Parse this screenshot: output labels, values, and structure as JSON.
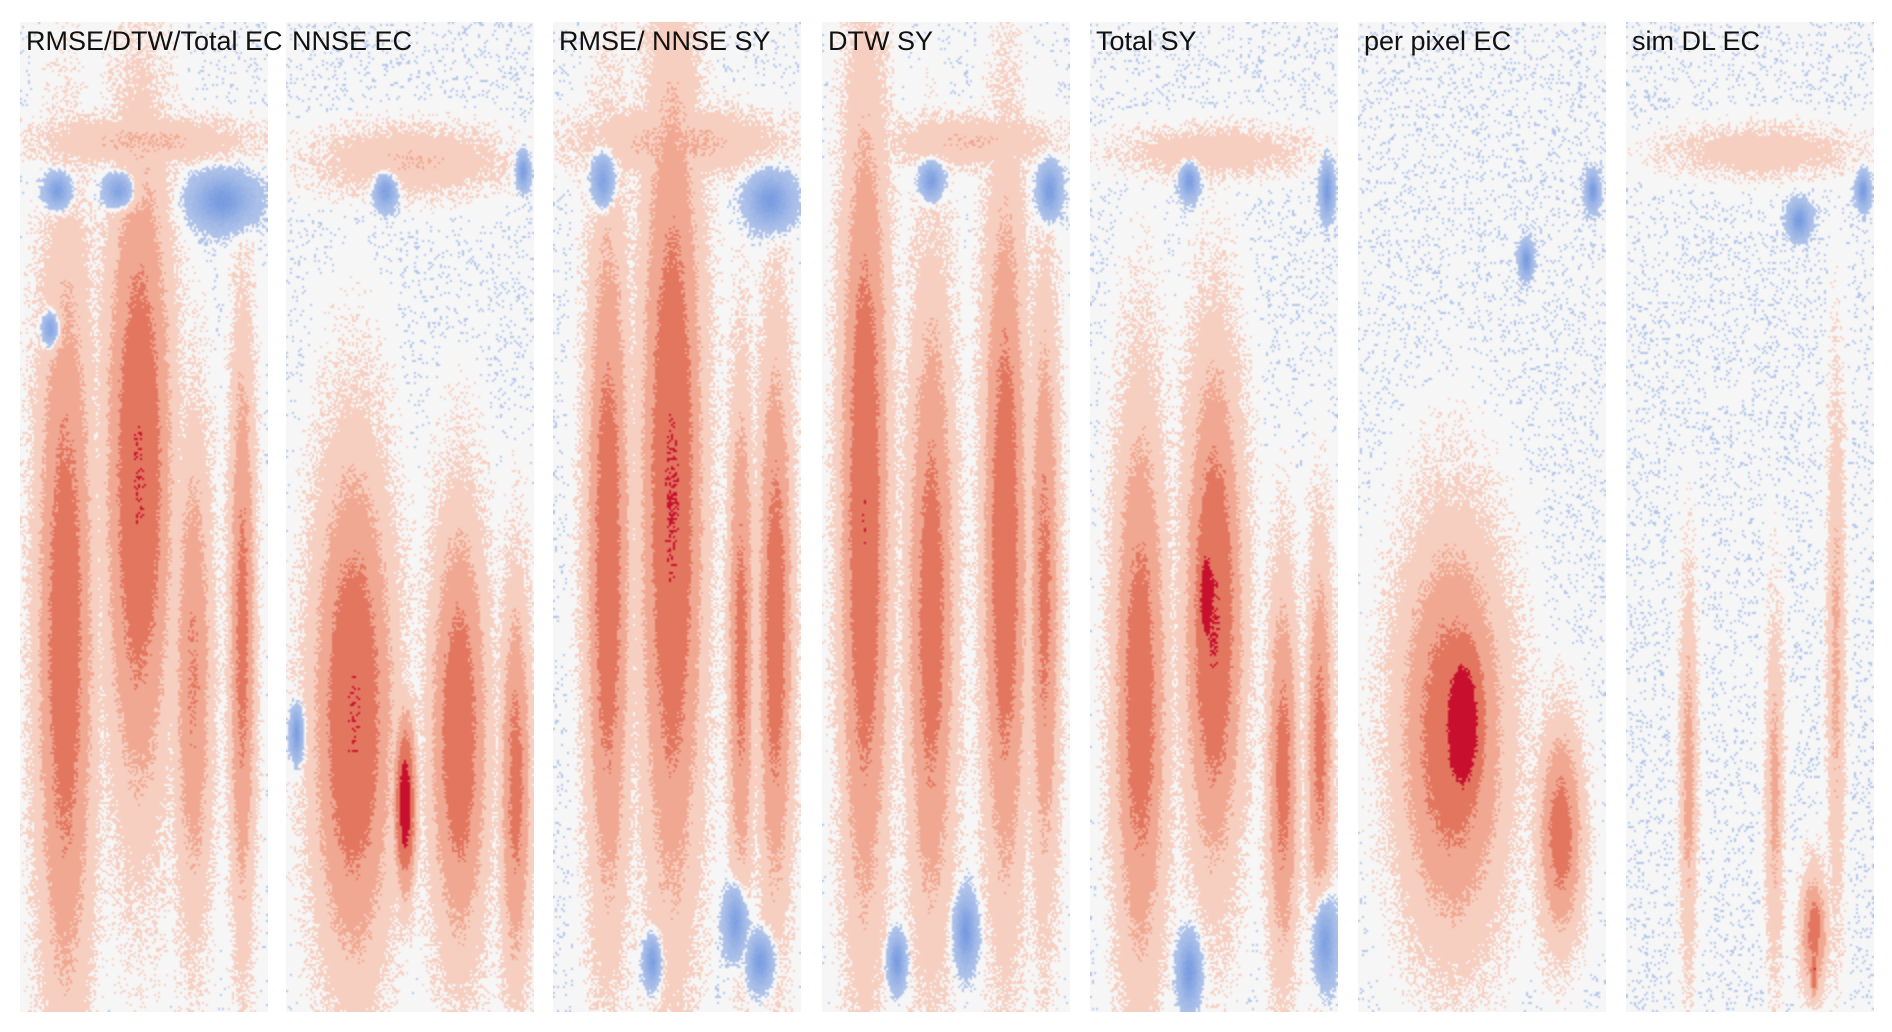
{
  "chart_data": {
    "type": "heatmap",
    "colormap": {
      "name": "diverging blue-white-red",
      "negative": "#3a6fd6",
      "neutral": "#f6f6f6",
      "positive": "#c8102e",
      "levels": [
        "#f7cfc0",
        "#f1a892",
        "#e3765f",
        "#c8102e"
      ]
    },
    "panels": [
      {
        "title": "RMSE/DTW/Total EC",
        "plumes": [
          {
            "x": 0.18,
            "y": 0.62,
            "w": 0.13,
            "h": 0.42,
            "v": 0.6
          },
          {
            "x": 0.48,
            "y": 0.46,
            "w": 0.15,
            "h": 0.36,
            "v": 0.68
          },
          {
            "x": 0.7,
            "y": 0.66,
            "w": 0.09,
            "h": 0.28,
            "v": 0.42
          },
          {
            "x": 0.9,
            "y": 0.62,
            "w": 0.06,
            "h": 0.34,
            "v": 0.5
          },
          {
            "x": 0.5,
            "y": 0.12,
            "w": 0.5,
            "h": 0.03,
            "v": 0.22
          }
        ],
        "cold": [
          {
            "x": 0.15,
            "y": 0.17,
            "w": 0.06,
            "h": 0.02
          },
          {
            "x": 0.4,
            "y": 0.17,
            "w": 0.07,
            "h": 0.02
          },
          {
            "x": 0.82,
            "y": 0.18,
            "w": 0.14,
            "h": 0.03
          },
          {
            "x": 0.12,
            "y": 0.31,
            "w": 0.04,
            "h": 0.02
          }
        ]
      },
      {
        "title": "NNSE EC",
        "plumes": [
          {
            "x": 0.27,
            "y": 0.7,
            "w": 0.18,
            "h": 0.28,
            "v": 0.68
          },
          {
            "x": 0.48,
            "y": 0.79,
            "w": 0.05,
            "h": 0.1,
            "v": 0.92
          },
          {
            "x": 0.7,
            "y": 0.72,
            "w": 0.13,
            "h": 0.24,
            "v": 0.62
          },
          {
            "x": 0.93,
            "y": 0.77,
            "w": 0.07,
            "h": 0.22,
            "v": 0.52
          },
          {
            "x": 0.5,
            "y": 0.14,
            "w": 0.45,
            "h": 0.04,
            "v": 0.2
          }
        ],
        "cold": [
          {
            "x": 0.4,
            "y": 0.17,
            "w": 0.05,
            "h": 0.02
          },
          {
            "x": 0.96,
            "y": 0.15,
            "w": 0.03,
            "h": 0.02
          },
          {
            "x": 0.04,
            "y": 0.72,
            "w": 0.03,
            "h": 0.03
          }
        ]
      },
      {
        "title": "RMSE/ NNSE SY",
        "plumes": [
          {
            "x": 0.22,
            "y": 0.55,
            "w": 0.1,
            "h": 0.4,
            "v": 0.6
          },
          {
            "x": 0.48,
            "y": 0.48,
            "w": 0.14,
            "h": 0.46,
            "v": 0.7
          },
          {
            "x": 0.76,
            "y": 0.63,
            "w": 0.06,
            "h": 0.3,
            "v": 0.5
          },
          {
            "x": 0.9,
            "y": 0.61,
            "w": 0.08,
            "h": 0.32,
            "v": 0.58
          },
          {
            "x": 0.5,
            "y": 0.12,
            "w": 0.48,
            "h": 0.04,
            "v": 0.24
          }
        ],
        "cold": [
          {
            "x": 0.2,
            "y": 0.16,
            "w": 0.05,
            "h": 0.03
          },
          {
            "x": 0.88,
            "y": 0.18,
            "w": 0.1,
            "h": 0.03
          },
          {
            "x": 0.74,
            "y": 0.91,
            "w": 0.05,
            "h": 0.04
          },
          {
            "x": 0.4,
            "y": 0.95,
            "w": 0.04,
            "h": 0.03
          },
          {
            "x": 0.84,
            "y": 0.95,
            "w": 0.06,
            "h": 0.03
          }
        ]
      },
      {
        "title": "DTW SY",
        "plumes": [
          {
            "x": 0.17,
            "y": 0.5,
            "w": 0.11,
            "h": 0.46,
            "v": 0.66
          },
          {
            "x": 0.44,
            "y": 0.6,
            "w": 0.11,
            "h": 0.36,
            "v": 0.56
          },
          {
            "x": 0.74,
            "y": 0.53,
            "w": 0.1,
            "h": 0.4,
            "v": 0.62
          },
          {
            "x": 0.9,
            "y": 0.58,
            "w": 0.07,
            "h": 0.34,
            "v": 0.48
          },
          {
            "x": 0.6,
            "y": 0.12,
            "w": 0.4,
            "h": 0.03,
            "v": 0.2
          }
        ],
        "cold": [
          {
            "x": 0.44,
            "y": 0.16,
            "w": 0.05,
            "h": 0.02
          },
          {
            "x": 0.92,
            "y": 0.17,
            "w": 0.05,
            "h": 0.03
          },
          {
            "x": 0.58,
            "y": 0.92,
            "w": 0.05,
            "h": 0.04
          },
          {
            "x": 0.3,
            "y": 0.95,
            "w": 0.04,
            "h": 0.03
          }
        ]
      },
      {
        "title": "Total SY",
        "plumes": [
          {
            "x": 0.2,
            "y": 0.68,
            "w": 0.12,
            "h": 0.32,
            "v": 0.58
          },
          {
            "x": 0.5,
            "y": 0.6,
            "w": 0.13,
            "h": 0.28,
            "v": 0.7
          },
          {
            "x": 0.47,
            "y": 0.58,
            "w": 0.05,
            "h": 0.09,
            "v": 0.96
          },
          {
            "x": 0.78,
            "y": 0.76,
            "w": 0.07,
            "h": 0.22,
            "v": 0.52
          },
          {
            "x": 0.93,
            "y": 0.73,
            "w": 0.06,
            "h": 0.22,
            "v": 0.5
          },
          {
            "x": 0.5,
            "y": 0.13,
            "w": 0.45,
            "h": 0.03,
            "v": 0.16
          }
        ],
        "cold": [
          {
            "x": 0.4,
            "y": 0.16,
            "w": 0.04,
            "h": 0.02
          },
          {
            "x": 0.96,
            "y": 0.17,
            "w": 0.03,
            "h": 0.03
          },
          {
            "x": 0.4,
            "y": 0.96,
            "w": 0.05,
            "h": 0.04
          },
          {
            "x": 0.95,
            "y": 0.93,
            "w": 0.05,
            "h": 0.05
          }
        ]
      },
      {
        "title": "per pixel EC",
        "plumes": [
          {
            "x": 0.38,
            "y": 0.72,
            "w": 0.24,
            "h": 0.22,
            "v": 0.62
          },
          {
            "x": 0.42,
            "y": 0.71,
            "w": 0.13,
            "h": 0.13,
            "v": 0.98
          },
          {
            "x": 0.82,
            "y": 0.82,
            "w": 0.1,
            "h": 0.12,
            "v": 0.56
          }
        ],
        "cold": [
          {
            "x": 0.95,
            "y": 0.17,
            "w": 0.03,
            "h": 0.02
          },
          {
            "x": 0.68,
            "y": 0.24,
            "w": 0.03,
            "h": 0.02
          }
        ]
      },
      {
        "title": "sim DL EC",
        "plumes": [
          {
            "x": 0.25,
            "y": 0.76,
            "w": 0.04,
            "h": 0.22,
            "v": 0.3
          },
          {
            "x": 0.6,
            "y": 0.78,
            "w": 0.04,
            "h": 0.2,
            "v": 0.28
          },
          {
            "x": 0.76,
            "y": 0.92,
            "w": 0.06,
            "h": 0.07,
            "v": 0.52
          },
          {
            "x": 0.76,
            "y": 0.96,
            "w": 0.02,
            "h": 0.03,
            "v": 0.72
          },
          {
            "x": 0.85,
            "y": 0.64,
            "w": 0.04,
            "h": 0.3,
            "v": 0.26
          },
          {
            "x": 0.55,
            "y": 0.13,
            "w": 0.45,
            "h": 0.03,
            "v": 0.16
          }
        ],
        "cold": [
          {
            "x": 0.96,
            "y": 0.17,
            "w": 0.03,
            "h": 0.02
          },
          {
            "x": 0.7,
            "y": 0.2,
            "w": 0.05,
            "h": 0.02
          }
        ]
      }
    ]
  }
}
